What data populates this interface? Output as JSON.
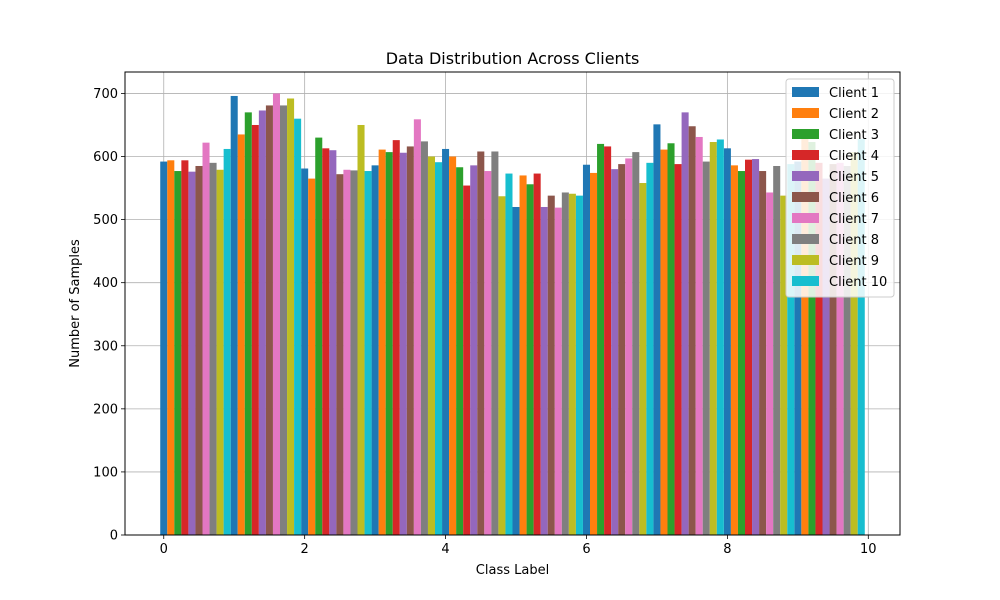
{
  "chart_data": {
    "type": "bar",
    "title": "Data Distribution Across Clients",
    "xlabel": "Class Label",
    "ylabel": "Number of Samples",
    "xlim": [
      -0.55,
      10.45
    ],
    "ylim": [
      0,
      734
    ],
    "xticks": [
      0,
      2,
      4,
      6,
      8,
      10
    ],
    "yticks": [
      0,
      100,
      200,
      300,
      400,
      500,
      600,
      700
    ],
    "grid": true,
    "legend_position": "upper right",
    "categories": [
      0,
      1,
      2,
      3,
      4,
      5,
      6,
      7,
      8,
      9
    ],
    "series": [
      {
        "name": "Client 1",
        "color": "#1f77b4",
        "values": [
          592,
          696,
          581,
          586,
          612,
          520,
          587,
          651,
          613,
          592
        ]
      },
      {
        "name": "Client 2",
        "color": "#ff7f0e",
        "values": [
          594,
          635,
          565,
          611,
          600,
          570,
          574,
          611,
          586,
          640
        ]
      },
      {
        "name": "Client 3",
        "color": "#2ca02c",
        "values": [
          577,
          670,
          630,
          607,
          583,
          556,
          620,
          621,
          577,
          623
        ]
      },
      {
        "name": "Client 4",
        "color": "#d62728",
        "values": [
          594,
          650,
          613,
          626,
          554,
          573,
          616,
          588,
          595,
          590
        ]
      },
      {
        "name": "Client 5",
        "color": "#9467bd",
        "values": [
          576,
          673,
          610,
          606,
          586,
          520,
          580,
          670,
          596,
          565
        ]
      },
      {
        "name": "Client 6",
        "color": "#8c564b",
        "values": [
          585,
          681,
          572,
          616,
          608,
          538,
          588,
          648,
          577,
          588
        ]
      },
      {
        "name": "Client 7",
        "color": "#e377c2",
        "values": [
          622,
          700,
          579,
          659,
          577,
          519,
          597,
          631,
          543,
          590
        ]
      },
      {
        "name": "Client 8",
        "color": "#7f7f7f",
        "values": [
          590,
          681,
          578,
          624,
          608,
          543,
          607,
          592,
          585,
          585
        ]
      },
      {
        "name": "Client 9",
        "color": "#bcbd22",
        "values": [
          579,
          692,
          650,
          600,
          537,
          541,
          558,
          623,
          538,
          607
        ]
      },
      {
        "name": "Client 10",
        "color": "#17becf",
        "values": [
          612,
          660,
          577,
          591,
          573,
          538,
          590,
          627,
          588,
          628
        ]
      }
    ]
  }
}
